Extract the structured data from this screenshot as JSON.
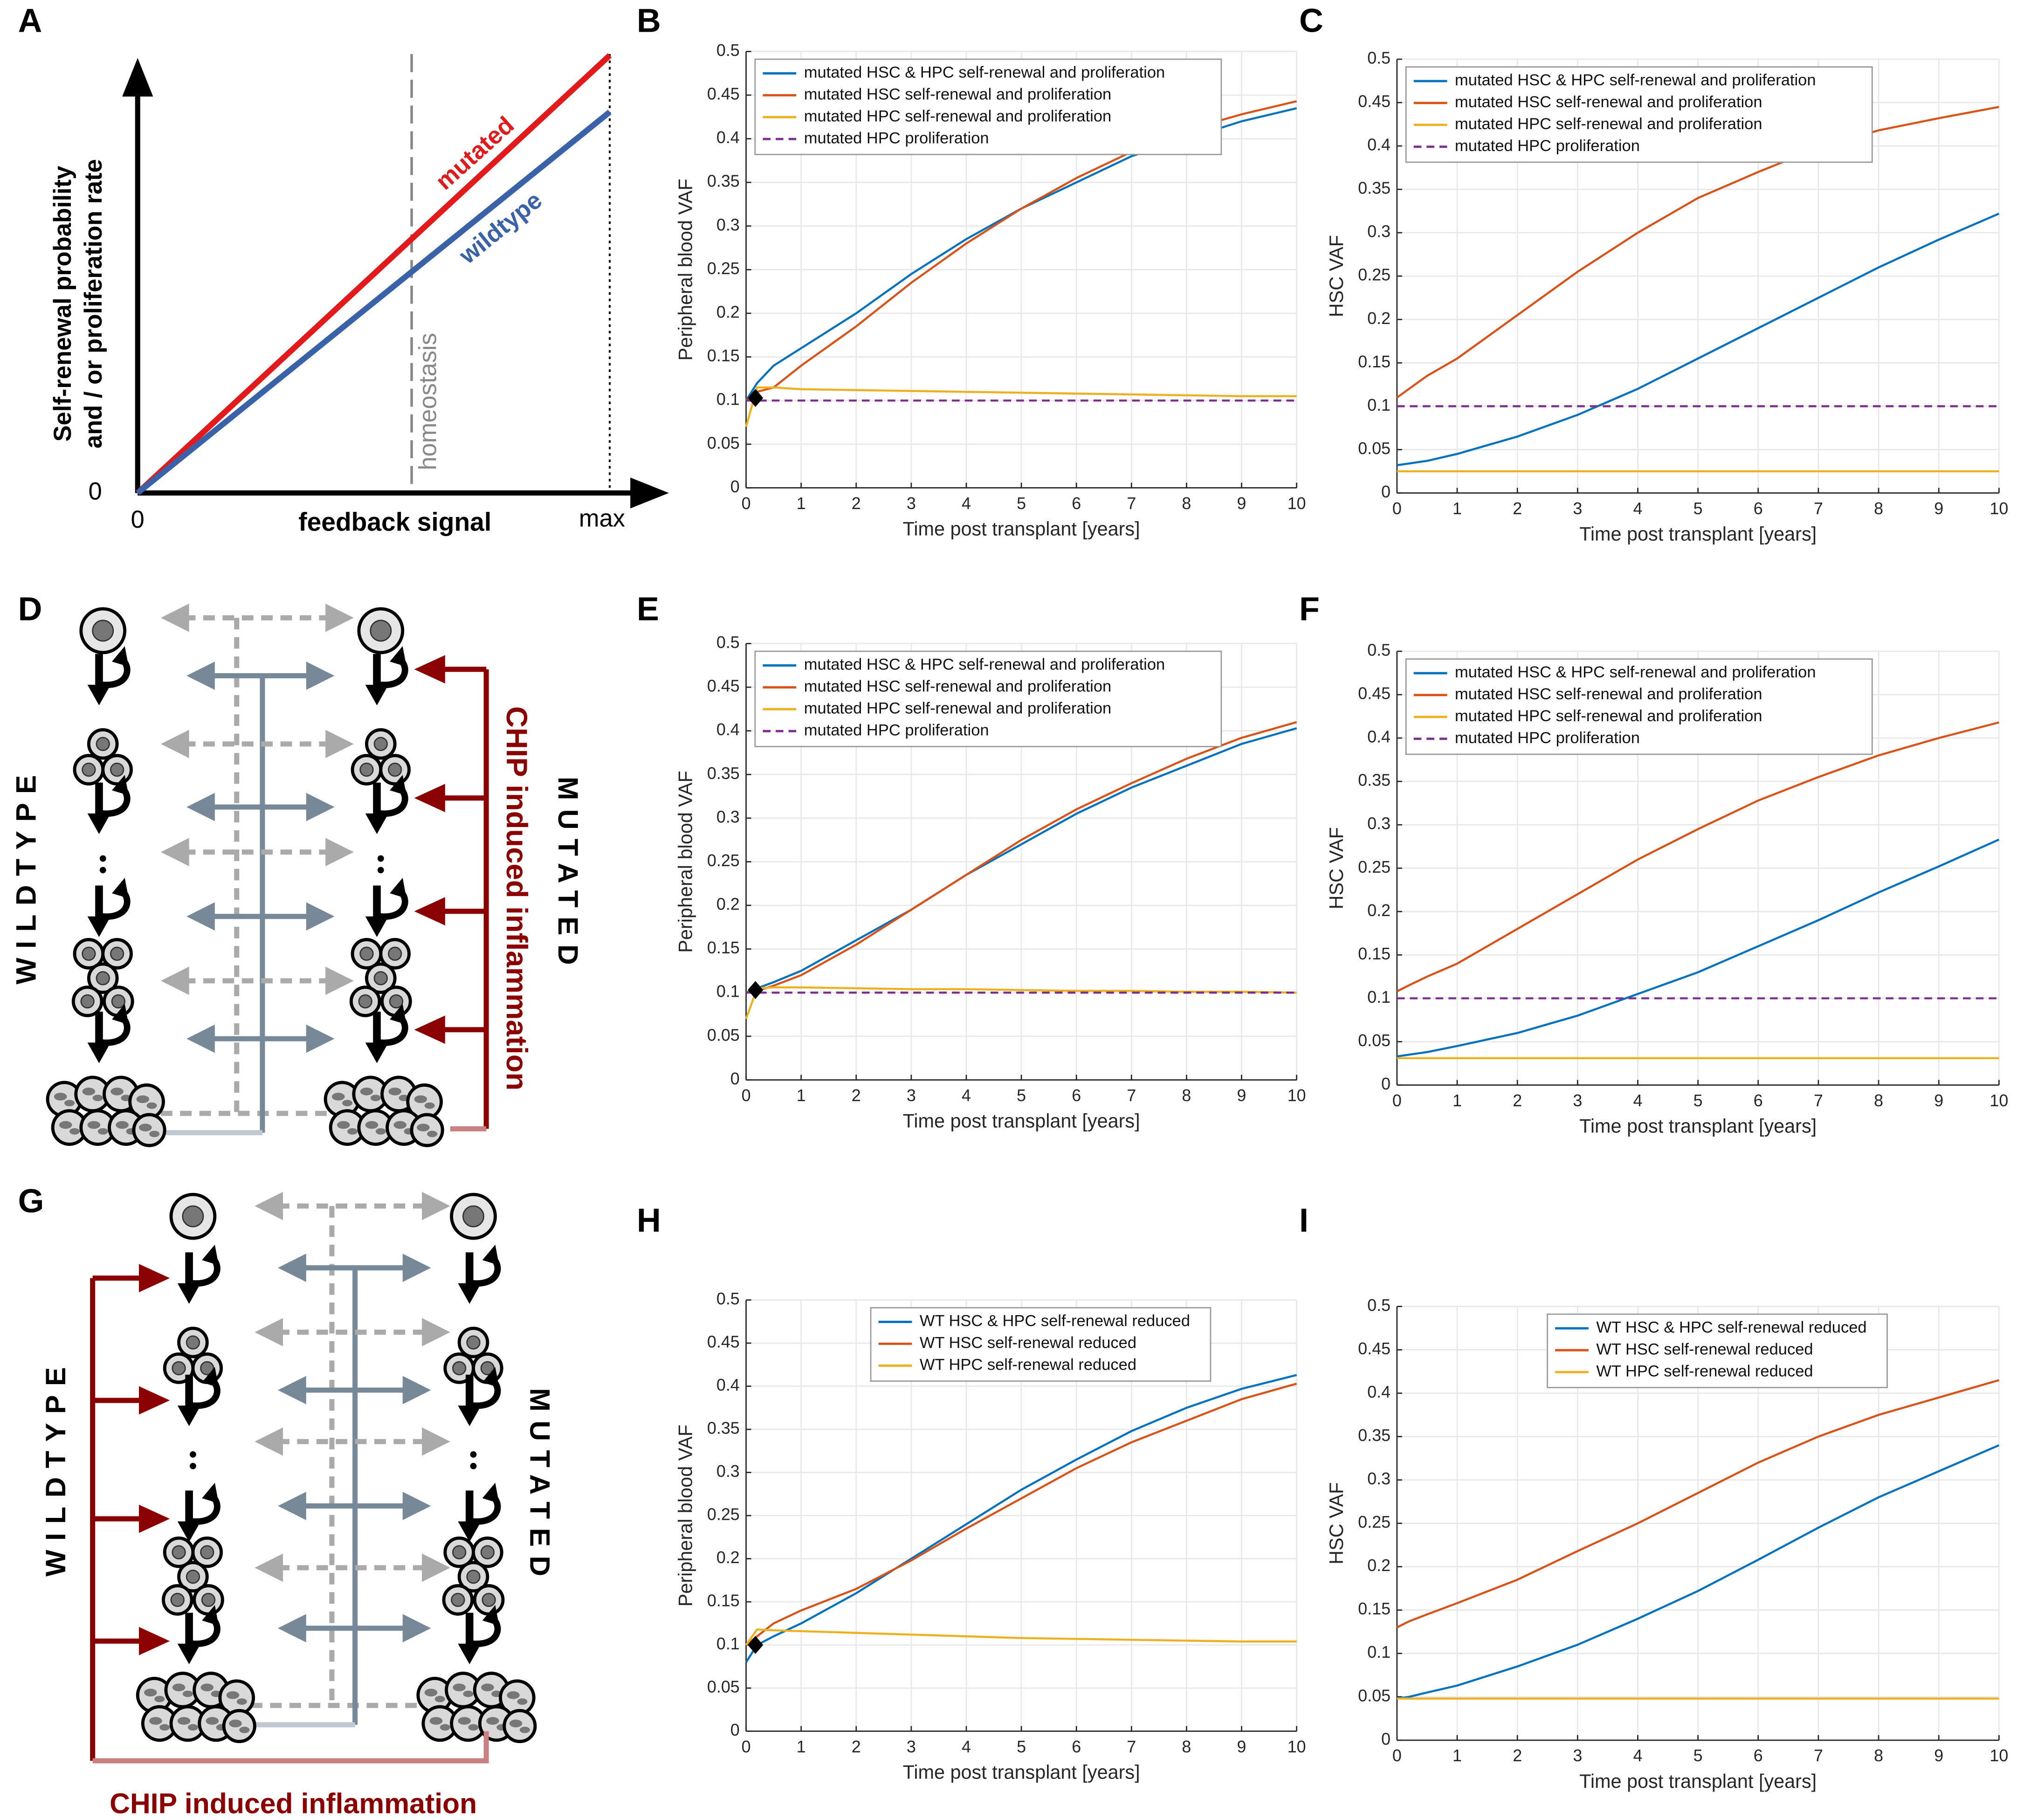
{
  "panel_labels": [
    "A",
    "B",
    "C",
    "D",
    "E",
    "F",
    "G",
    "H",
    "I"
  ],
  "schematic_a": {
    "y_label": [
      "Self-renewal probability",
      "and / or proliferation rate"
    ],
    "x_label": "feedback signal",
    "y_origin": "0",
    "x_origin": "0",
    "x_max": "max",
    "line_labels": [
      "mutated",
      "wildtype"
    ],
    "marker_label": "homeostasis"
  },
  "diagrams": [
    {
      "left": "WILDTYPE",
      "right": "MUTATED",
      "signal": "CHIP induced inflammation"
    },
    {
      "left": "WILDTYPE",
      "right": "MUTATED",
      "signal": "CHIP induced inflammation"
    }
  ],
  "chart_data": [
    {
      "type": "line",
      "y_label": "Peripheral blood VAF",
      "x_label": "Time post transplant [years]",
      "x": [
        0,
        0.2,
        0.5,
        1,
        2,
        3,
        4,
        5,
        6,
        7,
        8,
        9,
        10
      ],
      "series": [
        {
          "name": "mutated HSC & HPC self-renewal and proliferation",
          "color": "#0072bd",
          "values": [
            0.1,
            0.12,
            0.14,
            0.16,
            0.2,
            0.245,
            0.285,
            0.32,
            0.35,
            0.38,
            0.4,
            0.42,
            0.435
          ]
        },
        {
          "name": "mutated HSC self-renewal and proliferation",
          "color": "#d95319",
          "values": [
            0.1,
            0.11,
            0.115,
            0.14,
            0.185,
            0.235,
            0.28,
            0.32,
            0.355,
            0.385,
            0.41,
            0.428,
            0.443
          ]
        },
        {
          "name": "mutated HPC self-renewal and proliferation",
          "color": "#edb120",
          "values": [
            0.07,
            0.115,
            0.115,
            0.113,
            0.112,
            0.111,
            0.11,
            0.109,
            0.108,
            0.107,
            0.106,
            0.105,
            0.105
          ]
        },
        {
          "name": "mutated HPC proliferation",
          "color": "#7e2f8e",
          "line_style": "dashed",
          "values": [
            0.1,
            0.1,
            0.1,
            0.1,
            0.1,
            0.1,
            0.1,
            0.1,
            0.1,
            0.1,
            0.1,
            0.1,
            0.1
          ]
        }
      ],
      "points": [
        {
          "x": 0.17,
          "y": 0.103
        }
      ],
      "xlim": [
        0,
        10
      ],
      "xticks": [
        0,
        1,
        2,
        3,
        4,
        5,
        6,
        7,
        8,
        9,
        10
      ],
      "ylim": [
        0,
        0.5
      ],
      "yticks": [
        0,
        0.05,
        0.1,
        0.15,
        0.2,
        0.25,
        0.3,
        0.35,
        0.4,
        0.45,
        0.5
      ],
      "grid": true,
      "legend": "upper left"
    },
    {
      "type": "line",
      "y_label": "HSC VAF",
      "x_label": "Time post transplant [years]",
      "x": [
        0,
        0.2,
        0.5,
        1,
        2,
        3,
        4,
        5,
        6,
        7,
        8,
        9,
        10
      ],
      "series": [
        {
          "name": "mutated HSC & HPC self-renewal and proliferation",
          "color": "#0072bd",
          "values": [
            0.032,
            0.034,
            0.037,
            0.045,
            0.065,
            0.09,
            0.12,
            0.155,
            0.19,
            0.225,
            0.26,
            0.292,
            0.322
          ]
        },
        {
          "name": "mutated HSC self-renewal and proliferation",
          "color": "#d95319",
          "values": [
            0.11,
            0.12,
            0.135,
            0.155,
            0.205,
            0.255,
            0.3,
            0.34,
            0.37,
            0.398,
            0.418,
            0.432,
            0.445
          ]
        },
        {
          "name": "mutated HPC self-renewal and proliferation",
          "color": "#edb120",
          "values": [
            0.025,
            0.025,
            0.025,
            0.025,
            0.025,
            0.025,
            0.025,
            0.025,
            0.025,
            0.025,
            0.025,
            0.025,
            0.025
          ]
        },
        {
          "name": "mutated HPC proliferation",
          "color": "#7e2f8e",
          "line_style": "dashed",
          "values": [
            0.1,
            0.1,
            0.1,
            0.1,
            0.1,
            0.1,
            0.1,
            0.1,
            0.1,
            0.1,
            0.1,
            0.1,
            0.1
          ]
        }
      ],
      "xlim": [
        0,
        10
      ],
      "xticks": [
        0,
        1,
        2,
        3,
        4,
        5,
        6,
        7,
        8,
        9,
        10
      ],
      "ylim": [
        0,
        0.5
      ],
      "yticks": [
        0,
        0.05,
        0.1,
        0.15,
        0.2,
        0.25,
        0.3,
        0.35,
        0.4,
        0.45,
        0.5
      ],
      "grid": true,
      "legend": "upper left"
    },
    {
      "type": "line",
      "y_label": "Peripheral blood VAF",
      "x_label": "Time post transplant [years]",
      "x": [
        0,
        0.2,
        0.5,
        1,
        2,
        3,
        4,
        5,
        6,
        7,
        8,
        9,
        10
      ],
      "series": [
        {
          "name": "mutated HSC & HPC self-renewal and proliferation",
          "color": "#0072bd",
          "values": [
            0.1,
            0.105,
            0.112,
            0.125,
            0.16,
            0.195,
            0.235,
            0.27,
            0.305,
            0.335,
            0.36,
            0.385,
            0.403
          ]
        },
        {
          "name": "mutated HSC self-renewal and proliferation",
          "color": "#d95319",
          "values": [
            0.1,
            0.102,
            0.108,
            0.12,
            0.155,
            0.195,
            0.235,
            0.275,
            0.31,
            0.34,
            0.368,
            0.392,
            0.41
          ]
        },
        {
          "name": "mutated HPC self-renewal and proliferation",
          "color": "#edb120",
          "values": [
            0.07,
            0.105,
            0.106,
            0.106,
            0.105,
            0.104,
            0.104,
            0.103,
            0.102,
            0.102,
            0.101,
            0.101,
            0.1
          ]
        },
        {
          "name": "mutated HPC proliferation",
          "color": "#7e2f8e",
          "line_style": "dashed",
          "values": [
            0.1,
            0.1,
            0.1,
            0.1,
            0.1,
            0.1,
            0.1,
            0.1,
            0.1,
            0.1,
            0.1,
            0.1,
            0.1
          ]
        }
      ],
      "points": [
        {
          "x": 0.17,
          "y": 0.103
        }
      ],
      "xlim": [
        0,
        10
      ],
      "xticks": [
        0,
        1,
        2,
        3,
        4,
        5,
        6,
        7,
        8,
        9,
        10
      ],
      "ylim": [
        0,
        0.5
      ],
      "yticks": [
        0,
        0.05,
        0.1,
        0.15,
        0.2,
        0.25,
        0.3,
        0.35,
        0.4,
        0.45,
        0.5
      ],
      "grid": true,
      "legend": "upper left"
    },
    {
      "type": "line",
      "y_label": "HSC VAF",
      "x_label": "Time post transplant [years]",
      "x": [
        0,
        0.2,
        0.5,
        1,
        2,
        3,
        4,
        5,
        6,
        7,
        8,
        9,
        10
      ],
      "series": [
        {
          "name": "mutated HSC & HPC self-renewal and proliferation",
          "color": "#0072bd",
          "values": [
            0.033,
            0.035,
            0.038,
            0.045,
            0.06,
            0.08,
            0.105,
            0.13,
            0.16,
            0.19,
            0.222,
            0.252,
            0.283
          ]
        },
        {
          "name": "mutated HSC self-renewal and proliferation",
          "color": "#d95319",
          "values": [
            0.108,
            0.115,
            0.125,
            0.14,
            0.18,
            0.22,
            0.26,
            0.295,
            0.328,
            0.355,
            0.38,
            0.4,
            0.418
          ]
        },
        {
          "name": "mutated HPC self-renewal and proliferation",
          "color": "#edb120",
          "values": [
            0.031,
            0.031,
            0.031,
            0.031,
            0.031,
            0.031,
            0.031,
            0.031,
            0.031,
            0.031,
            0.031,
            0.031,
            0.031
          ]
        },
        {
          "name": "mutated HPC proliferation",
          "color": "#7e2f8e",
          "line_style": "dashed",
          "values": [
            0.1,
            0.1,
            0.1,
            0.1,
            0.1,
            0.1,
            0.1,
            0.1,
            0.1,
            0.1,
            0.1,
            0.1,
            0.1
          ]
        }
      ],
      "xlim": [
        0,
        10
      ],
      "xticks": [
        0,
        1,
        2,
        3,
        4,
        5,
        6,
        7,
        8,
        9,
        10
      ],
      "ylim": [
        0,
        0.5
      ],
      "yticks": [
        0,
        0.05,
        0.1,
        0.15,
        0.2,
        0.25,
        0.3,
        0.35,
        0.4,
        0.45,
        0.5
      ],
      "grid": true,
      "legend": "upper left"
    },
    {
      "type": "line",
      "y_label": "Peripheral blood VAF",
      "x_label": "Time post transplant [years]",
      "x": [
        0,
        0.2,
        0.5,
        1,
        2,
        3,
        4,
        5,
        6,
        7,
        8,
        9,
        10
      ],
      "series": [
        {
          "name": "WT HSC & HPC self-renewal reduced",
          "color": "#0072bd",
          "values": [
            0.08,
            0.1,
            0.11,
            0.125,
            0.16,
            0.2,
            0.24,
            0.28,
            0.315,
            0.348,
            0.375,
            0.397,
            0.413
          ]
        },
        {
          "name": "WT HSC self-renewal reduced",
          "color": "#d95319",
          "values": [
            0.1,
            0.11,
            0.125,
            0.14,
            0.165,
            0.198,
            0.235,
            0.27,
            0.305,
            0.335,
            0.36,
            0.385,
            0.403
          ]
        },
        {
          "name": "WT HPC self-renewal reduced",
          "color": "#edb120",
          "values": [
            0.1,
            0.118,
            0.117,
            0.116,
            0.114,
            0.112,
            0.11,
            0.108,
            0.107,
            0.106,
            0.105,
            0.104,
            0.104
          ]
        }
      ],
      "points": [
        {
          "x": 0.17,
          "y": 0.1
        }
      ],
      "xlim": [
        0,
        10
      ],
      "xticks": [
        0,
        1,
        2,
        3,
        4,
        5,
        6,
        7,
        8,
        9,
        10
      ],
      "ylim": [
        0,
        0.5
      ],
      "yticks": [
        0,
        0.05,
        0.1,
        0.15,
        0.2,
        0.25,
        0.3,
        0.35,
        0.4,
        0.45,
        0.5
      ],
      "grid": true,
      "legend": "upper center"
    },
    {
      "type": "line",
      "y_label": "HSC VAF",
      "x_label": "Time post transplant [years]",
      "x": [
        0,
        0.2,
        0.5,
        1,
        2,
        3,
        4,
        5,
        6,
        7,
        8,
        9,
        10
      ],
      "series": [
        {
          "name": "WT HSC & HPC self-renewal reduced",
          "color": "#0072bd",
          "values": [
            0.048,
            0.05,
            0.055,
            0.063,
            0.085,
            0.11,
            0.14,
            0.172,
            0.208,
            0.245,
            0.28,
            0.31,
            0.34
          ]
        },
        {
          "name": "WT HSC self-renewal reduced",
          "color": "#d95319",
          "values": [
            0.13,
            0.137,
            0.145,
            0.158,
            0.185,
            0.218,
            0.25,
            0.285,
            0.32,
            0.35,
            0.375,
            0.395,
            0.415
          ]
        },
        {
          "name": "WT HPC self-renewal reduced",
          "color": "#edb120",
          "values": [
            0.048,
            0.048,
            0.048,
            0.048,
            0.048,
            0.048,
            0.048,
            0.048,
            0.048,
            0.048,
            0.048,
            0.048,
            0.048
          ]
        }
      ],
      "xlim": [
        0,
        10
      ],
      "xticks": [
        0,
        1,
        2,
        3,
        4,
        5,
        6,
        7,
        8,
        9,
        10
      ],
      "ylim": [
        0,
        0.5
      ],
      "yticks": [
        0,
        0.05,
        0.1,
        0.15,
        0.2,
        0.25,
        0.3,
        0.35,
        0.4,
        0.45,
        0.5
      ],
      "grid": true,
      "legend": "upper center"
    }
  ]
}
